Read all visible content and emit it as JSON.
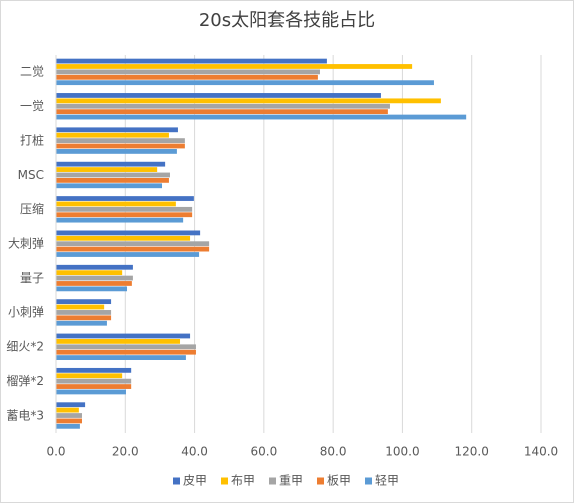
{
  "chart_data": {
    "type": "hbar",
    "title": "20s太阳套各技能占比",
    "categories": [
      "二觉",
      "一觉",
      "打桩",
      "MSC",
      "压缩",
      "大刺弹",
      "量子",
      "小刺弹",
      "细火*2",
      "榴弹*2",
      "蓄电*3"
    ],
    "series": [
      {
        "name": "皮甲",
        "color": "#4472c4",
        "values": [
          78.2,
          93.8,
          35.2,
          31.5,
          39.8,
          41.6,
          22.2,
          15.9,
          38.7,
          21.7,
          8.4
        ]
      },
      {
        "name": "布甲",
        "color": "#ffc000",
        "values": [
          102.8,
          111.1,
          32.6,
          29.2,
          34.6,
          38.7,
          19.1,
          13.9,
          35.8,
          19.1,
          6.6
        ]
      },
      {
        "name": "重甲",
        "color": "#a5a5a5",
        "values": [
          76.2,
          96.4,
          37.2,
          32.9,
          39.3,
          44.2,
          22.2,
          15.9,
          40.4,
          21.7,
          7.5
        ]
      },
      {
        "name": "板甲",
        "color": "#ed7d31",
        "values": [
          75.6,
          95.8,
          37.2,
          32.6,
          39.3,
          44.2,
          21.9,
          15.9,
          40.4,
          21.7,
          7.5
        ]
      },
      {
        "name": "轻甲",
        "color": "#5b9bd5",
        "values": [
          109.1,
          118.4,
          34.9,
          30.6,
          36.7,
          41.3,
          20.5,
          14.7,
          37.5,
          20.2,
          6.9
        ]
      }
    ],
    "xlim": [
      0,
      140
    ],
    "xticks": [
      {
        "value": 0,
        "label": "0.0"
      },
      {
        "value": 20,
        "label": "20.0"
      },
      {
        "value": 40,
        "label": "40.0"
      },
      {
        "value": 60,
        "label": "60.0"
      },
      {
        "value": 80,
        "label": "80.0"
      },
      {
        "value": 100,
        "label": "100.0"
      },
      {
        "value": 120,
        "label": "120.0"
      },
      {
        "value": 140,
        "label": "140.0"
      }
    ],
    "grid": true,
    "legend": "bottom"
  }
}
